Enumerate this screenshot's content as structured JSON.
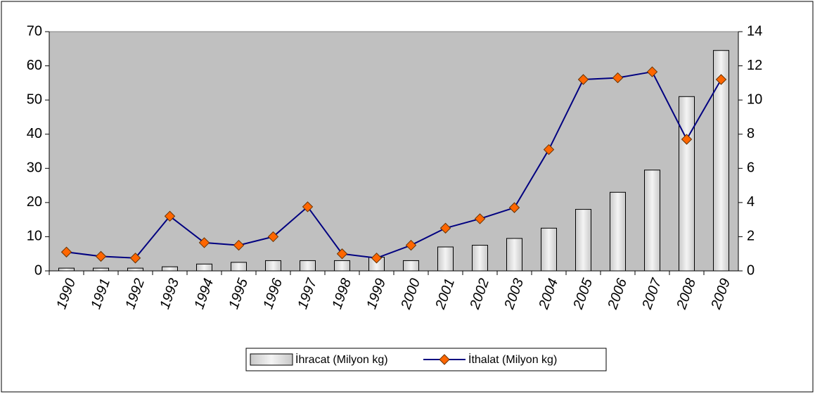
{
  "chart_data": {
    "type": "bar",
    "categories": [
      "1990",
      "1991",
      "1992",
      "1993",
      "1994",
      "1995",
      "1996",
      "1997",
      "1998",
      "1999",
      "2000",
      "2001",
      "2002",
      "2003",
      "2004",
      "2005",
      "2006",
      "2007",
      "2008",
      "2009"
    ],
    "series": [
      {
        "name": "İhracat (Milyon kg)",
        "type": "bar",
        "color": "#e0e0e0",
        "values": [
          0.8,
          0.8,
          0.8,
          1.2,
          2,
          2.5,
          3,
          3,
          3,
          4,
          3,
          7,
          7.5,
          9.5,
          12.5,
          18,
          23,
          29.5,
          51,
          64.5
        ]
      },
      {
        "name": "İthalat (Milyon kg)",
        "type": "line",
        "axis": "y2",
        "color": "#000080",
        "marker_color": "#ff6600",
        "values": [
          1.1,
          0.85,
          0.75,
          3.2,
          1.65,
          1.5,
          2.0,
          3.75,
          1.0,
          0.75,
          1.5,
          2.5,
          3.05,
          3.7,
          7.1,
          11.2,
          11.3,
          11.65,
          7.7,
          11.2
        ]
      }
    ],
    "ylim": [
      0,
      70
    ],
    "yticks": [
      0,
      10,
      20,
      30,
      40,
      50,
      60,
      70
    ],
    "y2lim": [
      0,
      14
    ],
    "y2ticks": [
      0,
      2,
      4,
      6,
      8,
      10,
      12,
      14
    ],
    "plot_background": "#c0c0c0",
    "legend": "bottom"
  }
}
